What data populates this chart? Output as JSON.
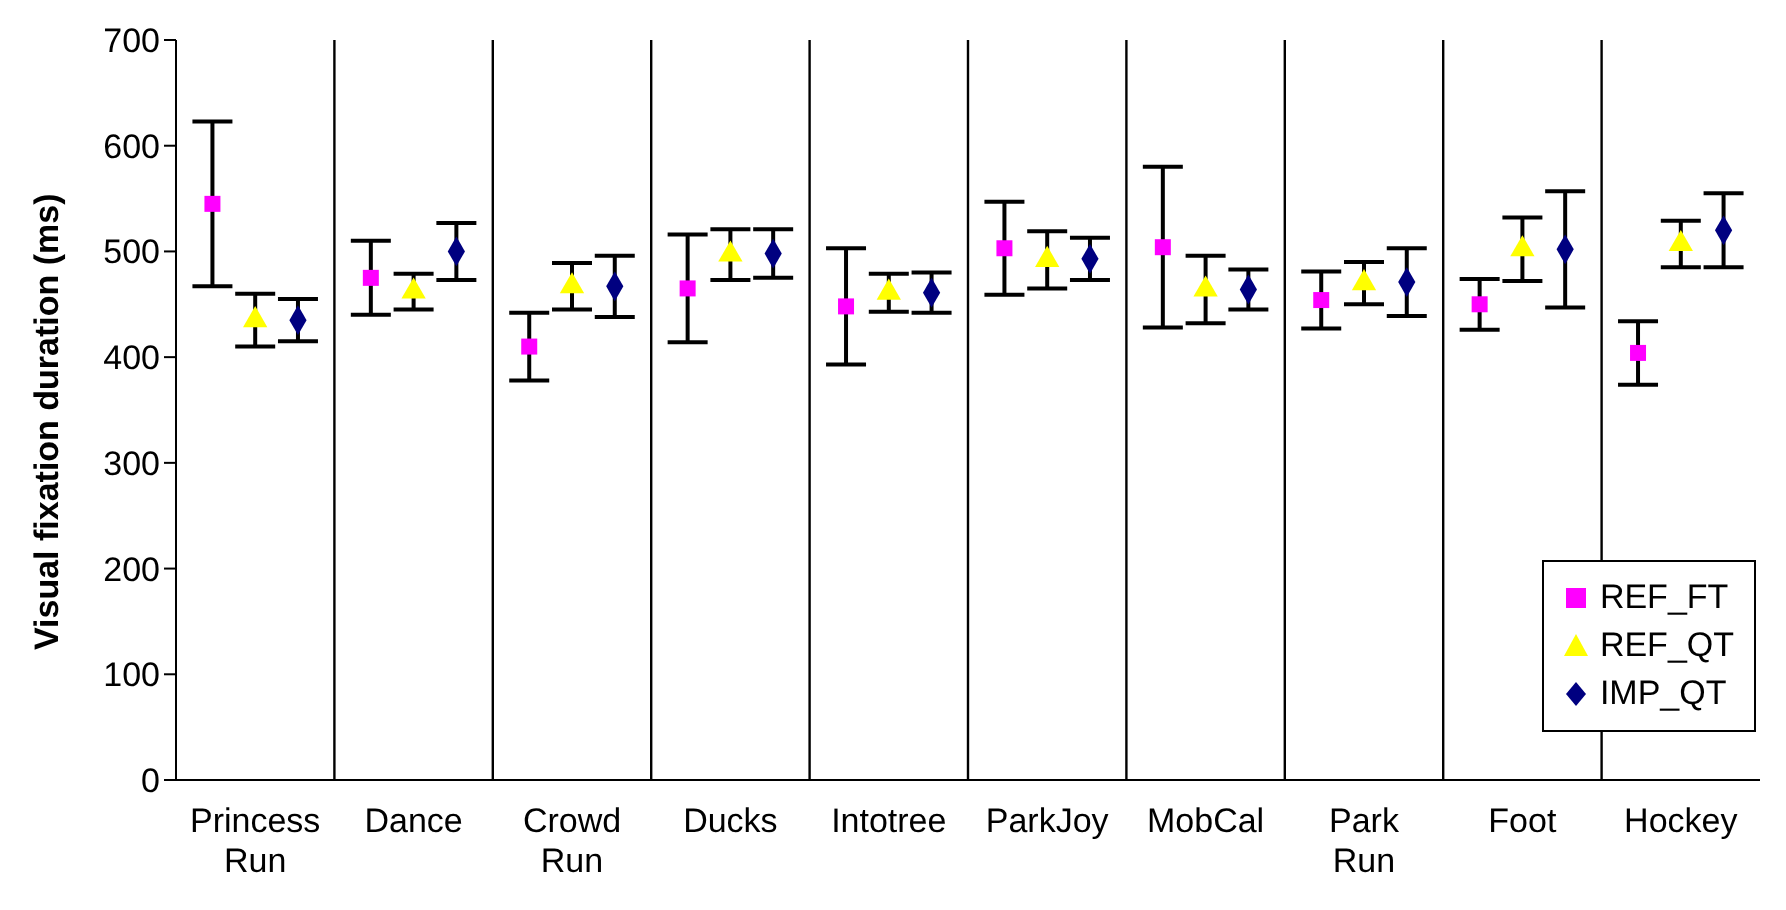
{
  "chart_data": {
    "type": "scatter",
    "ylabel": "Visual fixation duration (ms)",
    "categories": [
      "Princess Run",
      "Dance",
      "Crowd Run",
      "Ducks",
      "Intotree",
      "ParkJoy",
      "MobCal",
      "Park Run",
      "Foot",
      "Hockey"
    ],
    "ylim": [
      0,
      700
    ],
    "yticks": [
      0,
      100,
      200,
      300,
      400,
      500,
      600,
      700
    ],
    "grid": "x",
    "legend": "right",
    "series": [
      {
        "name": "REF_FT",
        "color": "#ff00ff",
        "marker": "square",
        "values": [
          545,
          475,
          410,
          465,
          448,
          503,
          504,
          454,
          450,
          404
        ],
        "errors": [
          78,
          35,
          32,
          51,
          55,
          44,
          76,
          27,
          24,
          30
        ]
      },
      {
        "name": "REF_QT",
        "color": "#ffff00",
        "marker": "triangle",
        "values": [
          435,
          462,
          467,
          497,
          461,
          492,
          464,
          470,
          502,
          507
        ],
        "errors": [
          25,
          17,
          22,
          24,
          18,
          27,
          32,
          20,
          30,
          22
        ]
      },
      {
        "name": "IMP_QT",
        "color": "#000080",
        "marker": "diamond",
        "values": [
          435,
          500,
          467,
          498,
          461,
          493,
          464,
          471,
          502,
          520
        ],
        "errors": [
          20,
          27,
          29,
          23,
          19,
          20,
          19,
          32,
          55,
          35
        ]
      }
    ]
  }
}
